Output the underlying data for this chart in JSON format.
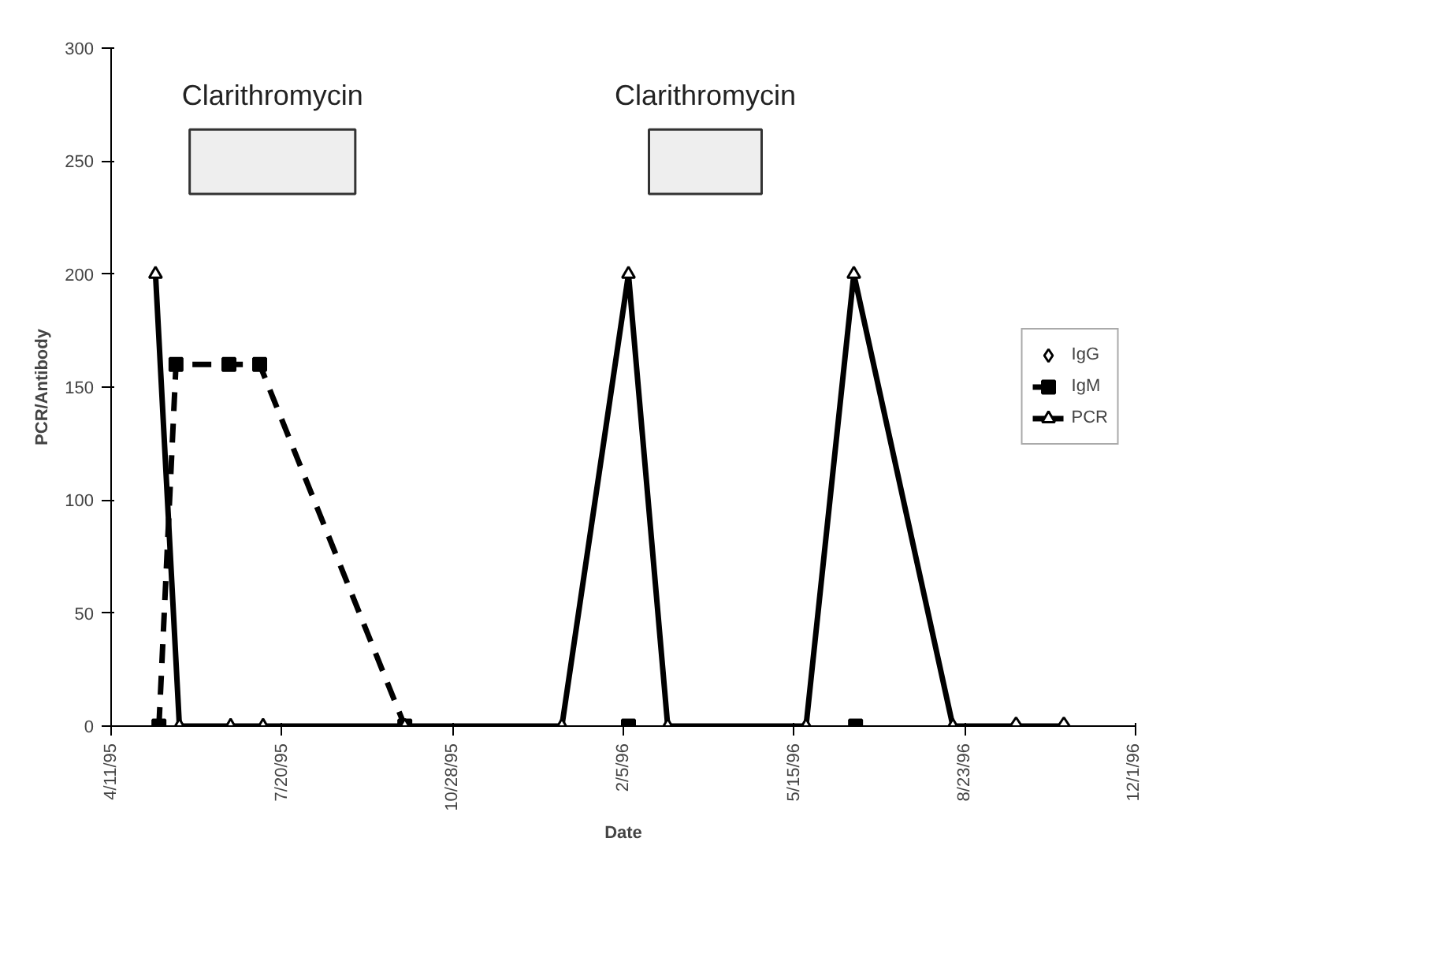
{
  "chart_data": {
    "type": "line",
    "xlabel": "Date",
    "ylabel": "PCR/Antibody",
    "xlim": [
      "1995-04-11",
      "1996-12-01"
    ],
    "xticks": [
      {
        "value": "1995-04-11",
        "label": "4/11/95"
      },
      {
        "value": "1995-07-20",
        "label": "7/20/95"
      },
      {
        "value": "1995-10-28",
        "label": "10/28/95"
      },
      {
        "value": "1996-02-05",
        "label": "2/5/96"
      },
      {
        "value": "1996-05-15",
        "label": "5/15/96"
      },
      {
        "value": "1996-08-23",
        "label": "8/23/96"
      },
      {
        "value": "1996-12-01",
        "label": "12/1/96"
      }
    ],
    "ylim": [
      0,
      300
    ],
    "yticks": [
      0,
      50,
      100,
      150,
      200,
      250,
      300
    ],
    "grid": false,
    "legend": "right",
    "series": [
      {
        "name": "IgG",
        "type": "scatter",
        "marker": "diamond",
        "color": "#000000",
        "x": [
          "1996-09-22",
          "1996-10-20"
        ],
        "values": [
          0,
          0
        ]
      },
      {
        "name": "IgM",
        "marker": "square",
        "line_style": "dashed",
        "color": "#000000",
        "x": [
          "1995-05-09",
          "1995-05-19",
          "1995-06-19",
          "1995-07-07",
          "1995-09-30",
          "1995-12-15",
          "1996-02-08",
          "1996-04-01",
          "1996-06-20"
        ],
        "values": [
          0,
          160,
          160,
          160,
          0,
          null,
          0,
          null,
          0
        ]
      },
      {
        "name": "PCR",
        "marker": "triangle",
        "line_style": "solid",
        "color": "#000000",
        "x": [
          "1995-05-07",
          "1995-05-21",
          "1995-06-20",
          "1995-07-09",
          "1995-09-30",
          "1995-12-31",
          "1996-02-08",
          "1996-03-02",
          "1996-05-22",
          "1996-06-19",
          "1996-08-16",
          "1996-09-22",
          "1996-10-20"
        ],
        "values": [
          200,
          0,
          0,
          0,
          0,
          0,
          200,
          0,
          0,
          200,
          0,
          0,
          0
        ]
      }
    ],
    "bands": [
      {
        "axis": "x",
        "from": "1995-05-27",
        "to": "1995-09-01",
        "label": "Clarithromycin",
        "color": "#eeeeee"
      },
      {
        "axis": "x",
        "from": "1996-02-20",
        "to": "1996-04-26",
        "label": "Clarithromycin",
        "color": "#eeeeee"
      }
    ]
  }
}
